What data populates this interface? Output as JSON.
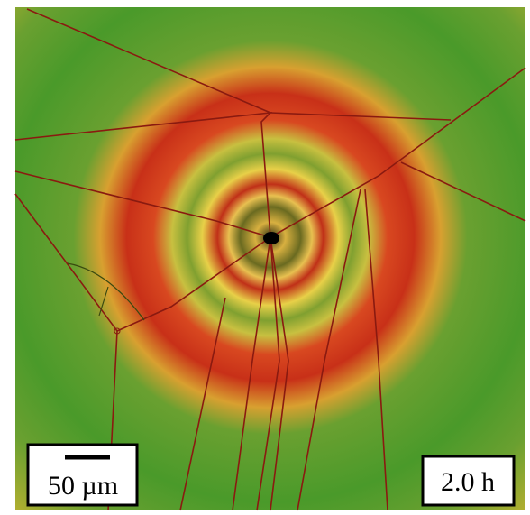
{
  "scale_bar": {
    "label": "50 µm"
  },
  "time_label": "2.0 h"
}
